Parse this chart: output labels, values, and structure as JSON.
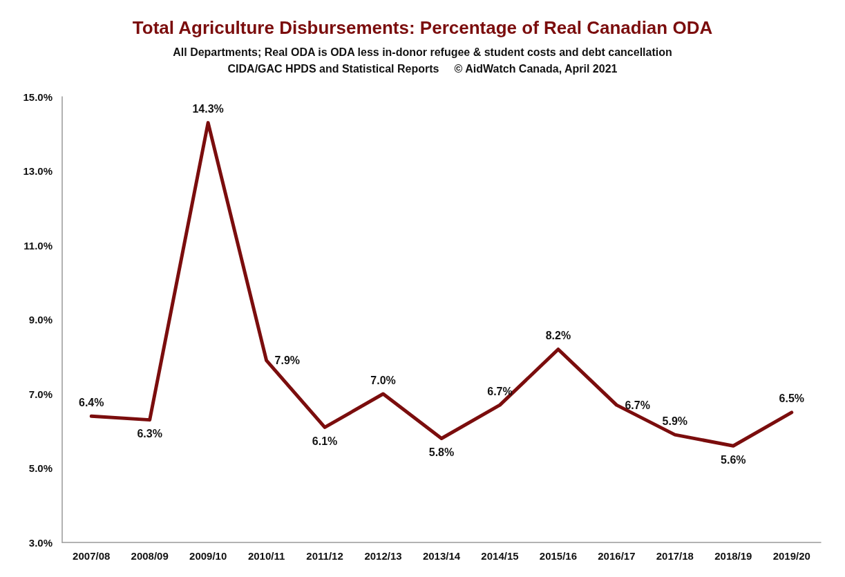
{
  "chart_data": {
    "type": "line",
    "title": "Total Agriculture Disbursements: Percentage of Real Canadian ODA",
    "subtitle": "All Departments; Real ODA is ODA less in-donor refugee & student costs and debt cancellation",
    "annotations": [
      "CIDA/GAC HPDS and Statistical Reports     © AidWatch Canada, April 2021"
    ],
    "categories": [
      "2007/08",
      "2008/09",
      "2009/10",
      "2010/11",
      "2011/12",
      "2012/13",
      "2013/14",
      "2014/15",
      "2015/16",
      "2016/17",
      "2017/18",
      "2018/19",
      "2019/20"
    ],
    "values": [
      6.4,
      6.3,
      14.3,
      7.9,
      6.1,
      7.0,
      5.8,
      6.7,
      8.2,
      6.7,
      5.9,
      5.6,
      6.5
    ],
    "value_labels": [
      "6.4%",
      "6.3%",
      "14.3%",
      "7.9%",
      "6.1%",
      "7.0%",
      "5.8%",
      "6.7%",
      "8.2%",
      "6.7%",
      "5.9%",
      "5.6%",
      "6.5%"
    ],
    "color": "#7b0d0d",
    "ylim": [
      3,
      15
    ],
    "yticks": [
      {
        "value": 3,
        "label": "3.0%"
      },
      {
        "value": 5,
        "label": "5.0%"
      },
      {
        "value": 7,
        "label": "7.0%"
      },
      {
        "value": 9,
        "label": "9.0%"
      },
      {
        "value": 11,
        "label": "11.0%"
      },
      {
        "value": 13,
        "label": "13.0%"
      },
      {
        "value": 15,
        "label": "15.0%"
      }
    ],
    "grid": false,
    "marker": "none",
    "line_style": "solid"
  }
}
